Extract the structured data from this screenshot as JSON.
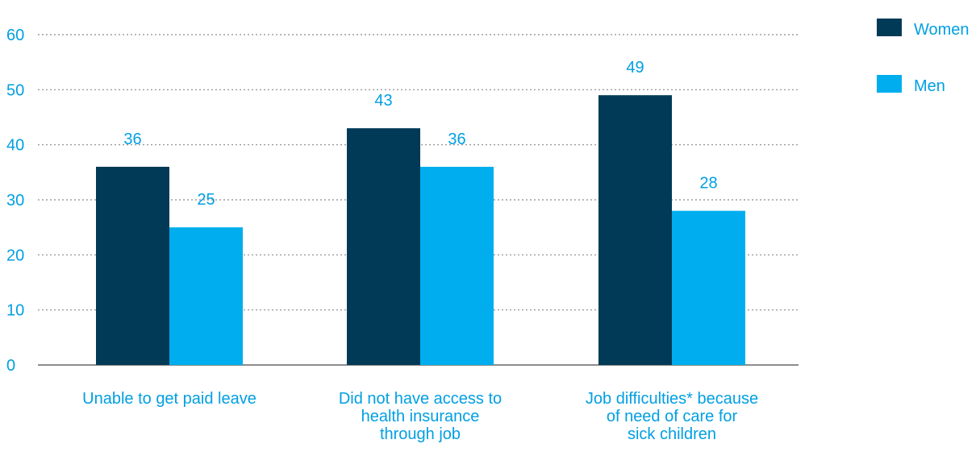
{
  "chart_data": {
    "type": "bar",
    "categories": [
      [
        "Unable to get paid leave"
      ],
      [
        "Did not have access to",
        "health insurance",
        "through job"
      ],
      [
        "Job difficulties* because",
        "of need of care for",
        "sick children"
      ]
    ],
    "series": [
      {
        "name": "Women",
        "color": "#003a57",
        "values": [
          36,
          43,
          49
        ]
      },
      {
        "name": "Men",
        "color": "#00aeef",
        "values": [
          25,
          36,
          28
        ]
      }
    ],
    "data_labels": {
      "Women": [
        "36",
        "43",
        "49"
      ],
      "Men": [
        "25",
        "36",
        "28"
      ]
    },
    "y_ticks": [
      0,
      10,
      20,
      30,
      40,
      50,
      60
    ],
    "ylim": [
      0,
      60
    ],
    "grid": "dotted-horizontal",
    "legend_position": "top-right",
    "label_color": "#009fe3",
    "axis_color": "#666666",
    "title": "",
    "xlabel": "",
    "ylabel": ""
  }
}
